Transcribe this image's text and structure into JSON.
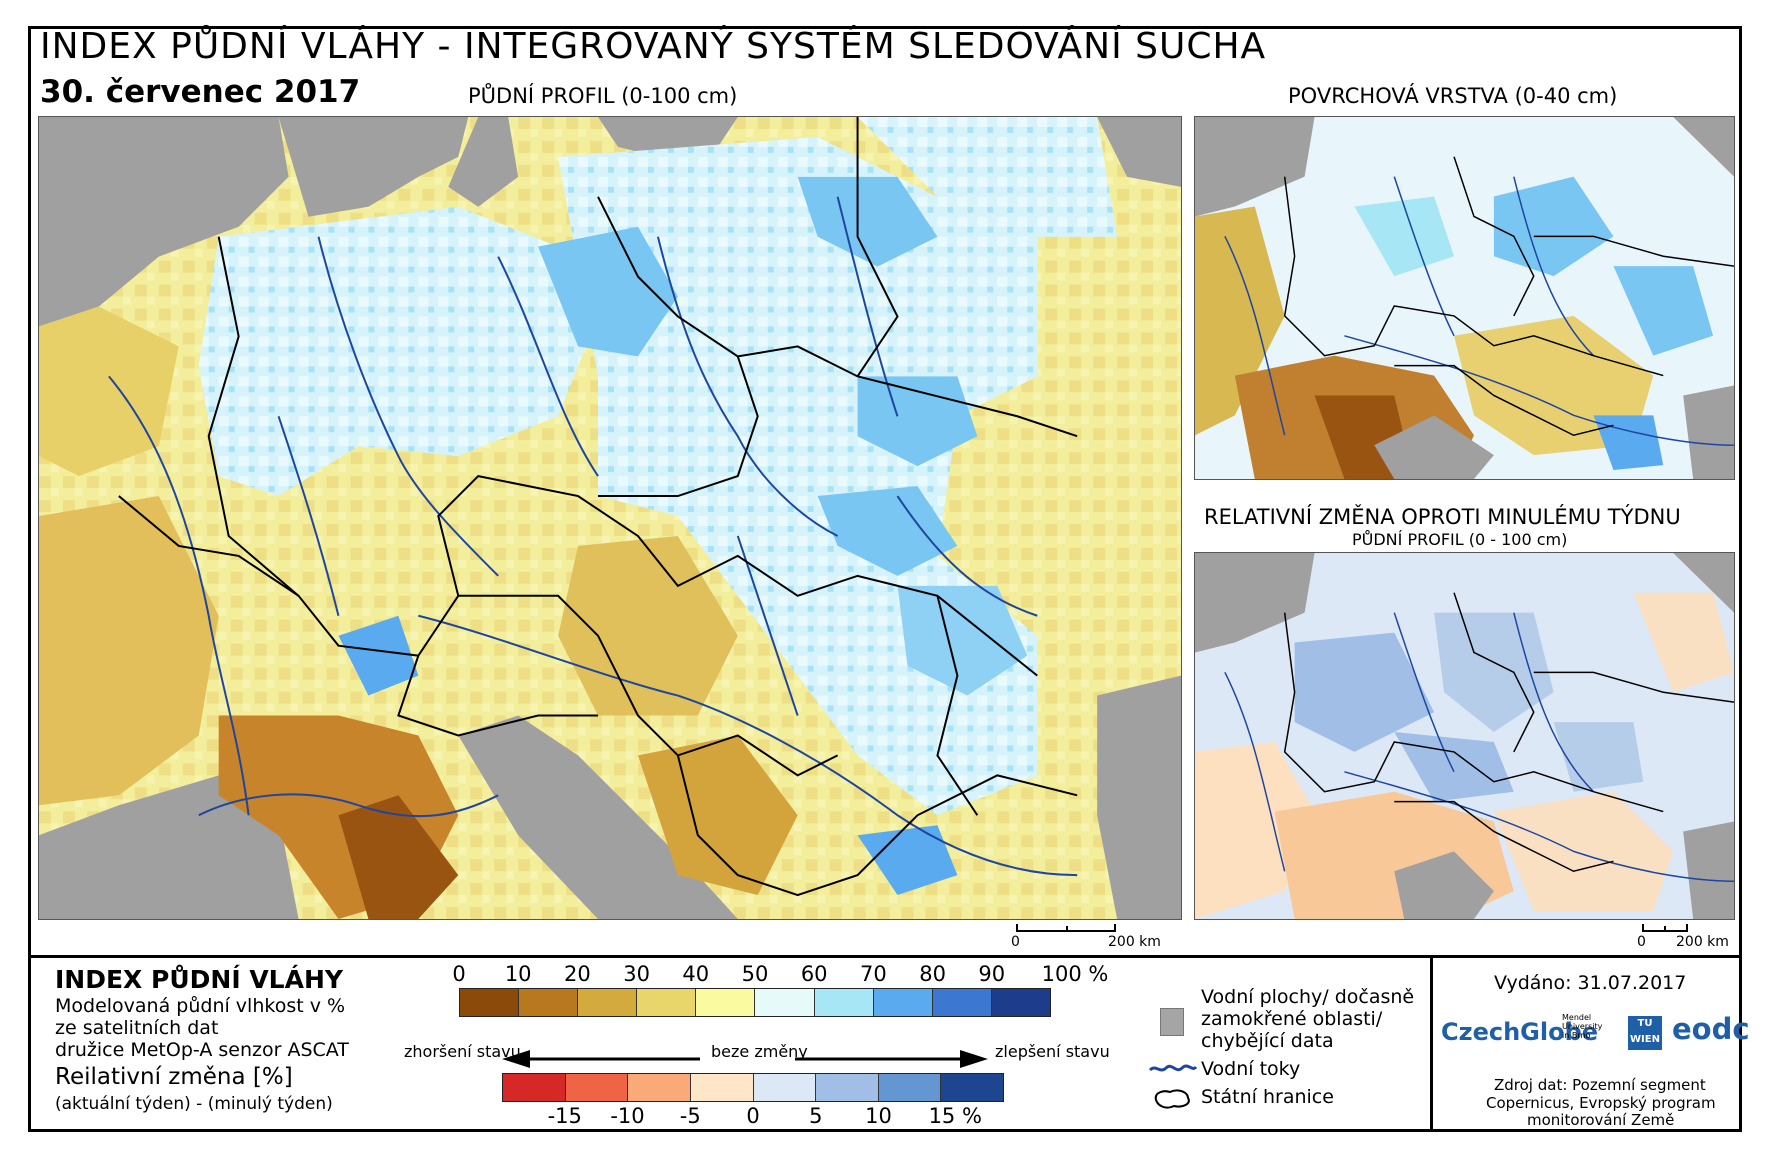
{
  "header": {
    "title": "INDEX PŮDNÍ VLÁHY - INTEGROVANÝ SYSTÉM SLEDOVÁNÍ SUCHA",
    "date": "30. červenec 2017"
  },
  "maps": {
    "main_title": "PŮDNÍ PROFIL (0-100 cm)",
    "top_right_title": "POVRCHOVÁ VRSTVA (0-40 cm)",
    "bottom_right_title": "RELATIVNÍ ZMĚNA OPROTI MINULÉMU TÝDNU",
    "bottom_right_subtitle": "PŮDNÍ PROFIL (0 - 100 cm)",
    "scale_main_zero": "0",
    "scale_main_label": "200 km",
    "scale_small_zero": "0",
    "scale_small_label": "200 km"
  },
  "legend": {
    "title": "INDEX PŮDNÍ VLÁHY",
    "desc_line1": "Modelovaná půdní vlhkost v %",
    "desc_line2": "ze satelitních dat",
    "desc_line3": "družice MetOp-A senzor ASCAT",
    "change_title": "Reilativní změna [%]",
    "change_desc": "(aktuální týden) - (minulý týden)",
    "index_ticks": [
      "0",
      "10",
      "20",
      "30",
      "40",
      "50",
      "60",
      "70",
      "80",
      "90",
      "100 %"
    ],
    "index_colors": [
      "#8c4a0a",
      "#b8781e",
      "#d3aa3c",
      "#e8d66a",
      "#fafaa0",
      "#e6fafa",
      "#a6e6f5",
      "#5aaaf0",
      "#3c78d2",
      "#1e3c8c"
    ],
    "change_ticks": [
      "-15",
      "-10",
      "-5",
      "0",
      "5",
      "10",
      "15 %"
    ],
    "change_colors": [
      "#d72828",
      "#f06446",
      "#faaa78",
      "#ffe6c8",
      "#dce8f5",
      "#a0bee6",
      "#6496d2",
      "#1e4690"
    ],
    "arrow_left": "zhoršení stavu",
    "arrow_mid": "beze změny",
    "arrow_right": "zlepšení stavu",
    "symbol_water": "Vodní plochy/ dočasně",
    "symbol_water2": "zamokřené oblasti/",
    "symbol_water3": "chybějící data",
    "symbol_rivers": "Vodní toky",
    "symbol_borders": "Státní hranice"
  },
  "footer": {
    "issued": "Vydáno: 31.07.2017",
    "logo_czechglobe": "CzechGlobe",
    "logo_mendel": "Mendel University in Brno",
    "logo_tu": "TU WIEN",
    "logo_eodc": "eodc",
    "source1": "Zdroj dat: Pozemní segment",
    "source2": "Copernicus, Evropský program",
    "source3": "monitorování Země"
  },
  "colors": {
    "land_gray": "#a0a0a0",
    "river_blue": "#1e46a0",
    "missing_gray": "#a5a5a5"
  }
}
